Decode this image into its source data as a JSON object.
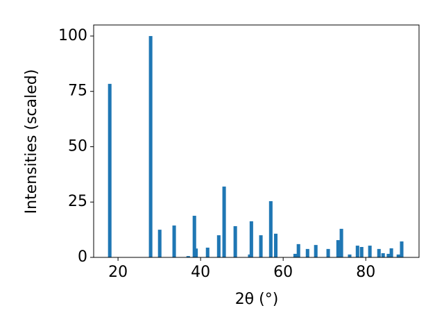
{
  "chart_data": {
    "type": "bar",
    "x": [
      18.0,
      27.9,
      30.1,
      33.6,
      37.0,
      38.5,
      38.9,
      41.7,
      44.4,
      45.7,
      48.4,
      51.9,
      52.3,
      54.6,
      57.0,
      58.2,
      62.9,
      63.7,
      65.9,
      67.9,
      70.9,
      73.3,
      74.1,
      76.1,
      78.0,
      79.0,
      81.0,
      83.2,
      84.2,
      85.5,
      86.2,
      87.9,
      88.7
    ],
    "values": [
      78.4,
      100,
      12.5,
      14.4,
      0.6,
      18.8,
      4.0,
      4.4,
      10.0,
      32.0,
      14.1,
      1.3,
      16.3,
      10.0,
      25.4,
      10.7,
      1.6,
      6.0,
      3.8,
      5.6,
      3.8,
      7.8,
      12.9,
      1.3,
      5.3,
      4.7,
      5.3,
      3.8,
      1.9,
      1.6,
      4.1,
      1.3,
      7.2
    ],
    "color": "#1f77b4",
    "xlabel": "2θ (°)",
    "ylabel": "Intensities (scaled)",
    "xlim": [
      14.1,
      92.9
    ],
    "ylim": [
      0,
      105
    ],
    "xticks": [
      20,
      40,
      60,
      80
    ],
    "yticks": [
      0,
      25,
      50,
      75,
      100
    ]
  }
}
